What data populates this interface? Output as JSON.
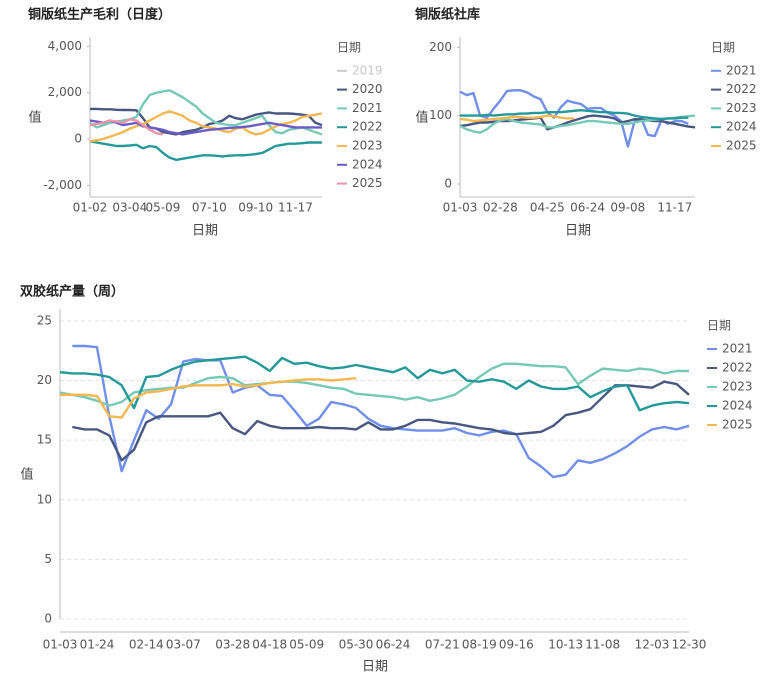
{
  "chart_data": [
    {
      "type": "line",
      "title": "铜版纸生产毛利（日度）",
      "x_label": "日期",
      "y_label": "值",
      "legend_title": "日期",
      "grid": false,
      "categories": [
        "01-02",
        null,
        null,
        null,
        null,
        null,
        "03-04",
        null,
        null,
        null,
        null,
        "05-09",
        null,
        null,
        null,
        null,
        null,
        null,
        "07-10",
        null,
        null,
        null,
        null,
        null,
        null,
        "09-10",
        null,
        null,
        null,
        null,
        null,
        "11-17",
        null,
        null,
        null,
        null
      ],
      "ylim": [
        -2500,
        4400
      ],
      "yticks": [
        {
          "value": -2000,
          "label": "-2,000"
        },
        0,
        {
          "value": 2000,
          "label": "2,000"
        },
        {
          "value": 4000,
          "label": "4,000"
        }
      ],
      "series": [
        {
          "name": "2019",
          "color": "#c8c8c8",
          "visible": false,
          "values": [
            null,
            null,
            null,
            null,
            null,
            null,
            null,
            null,
            null,
            null,
            null,
            null,
            null,
            null,
            null,
            null,
            null,
            null,
            null,
            null,
            null,
            null,
            null,
            null,
            null,
            null,
            null,
            null,
            null,
            null,
            null,
            null,
            null,
            null,
            null,
            null
          ]
        },
        {
          "name": "2020",
          "color": "#475781",
          "values": [
            1300,
            1300,
            1280,
            1280,
            1260,
            1250,
            1250,
            1240,
            900,
            500,
            450,
            300,
            250,
            200,
            300,
            350,
            400,
            500,
            650,
            700,
            800,
            1000,
            900,
            850,
            950,
            1050,
            1100,
            1150,
            1100,
            1100,
            1100,
            1080,
            1050,
            1000,
            700,
            600
          ]
        },
        {
          "name": "2021",
          "color": "#76c9b6",
          "values": [
            700,
            500,
            600,
            700,
            750,
            800,
            850,
            950,
            1500,
            1900,
            2000,
            2050,
            2100,
            1950,
            1800,
            1600,
            1400,
            1100,
            900,
            700,
            650,
            600,
            600,
            700,
            800,
            900,
            1000,
            600,
            300,
            250,
            400,
            450,
            500,
            400,
            300,
            200
          ]
        },
        {
          "name": "2022",
          "color": "#24999a",
          "values": [
            -100,
            -150,
            -200,
            -250,
            -300,
            -300,
            -280,
            -250,
            -400,
            -300,
            -350,
            -600,
            -800,
            -900,
            -850,
            -800,
            -750,
            -700,
            -700,
            -720,
            -750,
            -720,
            -700,
            -700,
            -680,
            -650,
            -600,
            -450,
            -300,
            -250,
            -200,
            -200,
            -180,
            -150,
            -150,
            -150
          ]
        },
        {
          "name": "2023",
          "color": "#f5b850",
          "values": [
            -100,
            -50,
            0,
            100,
            200,
            300,
            450,
            550,
            650,
            800,
            950,
            1100,
            1200,
            1100,
            1000,
            800,
            700,
            550,
            500,
            450,
            350,
            300,
            450,
            500,
            300,
            200,
            250,
            400,
            550,
            650,
            700,
            800,
            950,
            1000,
            1050,
            1100
          ]
        },
        {
          "name": "2024",
          "color": "#6a5bc6",
          "values": [
            800,
            750,
            700,
            800,
            700,
            600,
            650,
            700,
            550,
            500,
            450,
            400,
            300,
            250,
            200,
            250,
            300,
            350,
            400,
            420,
            450,
            480,
            500,
            520,
            550,
            600,
            650,
            700,
            650,
            600,
            550,
            500,
            500,
            500,
            500,
            500
          ]
        },
        {
          "name": "2025",
          "color": "#ec93ab",
          "values": [
            600,
            650,
            700,
            800,
            750,
            700,
            850,
            800,
            600,
            400,
            250,
            200,
            null,
            null,
            null,
            null,
            null,
            null,
            null,
            null,
            null,
            null,
            null,
            null,
            null,
            null,
            null,
            null,
            null,
            null,
            null,
            null,
            null,
            null,
            null,
            null
          ]
        }
      ]
    },
    {
      "type": "line",
      "title": "铜版纸社库",
      "x_label": "日期",
      "y_label": "值",
      "legend_title": "日期",
      "grid": false,
      "categories": [
        "01-03",
        null,
        null,
        null,
        null,
        null,
        "02-28",
        null,
        null,
        null,
        null,
        null,
        null,
        "04-25",
        null,
        null,
        null,
        null,
        null,
        "06-24",
        null,
        null,
        null,
        null,
        null,
        "09-08",
        null,
        null,
        null,
        null,
        null,
        null,
        "11-17",
        null,
        null,
        null
      ],
      "ylim": [
        -19,
        215
      ],
      "yticks": [
        0,
        100,
        200
      ],
      "series": [
        {
          "name": "2021",
          "color": "#6f8fe8",
          "values": [
            135,
            130,
            133,
            100,
            97,
            110,
            122,
            136,
            137,
            137,
            134,
            128,
            124,
            105,
            97,
            112,
            122,
            119,
            117,
            110,
            111,
            111,
            104,
            100,
            92,
            55,
            92,
            96,
            72,
            70,
            93,
            88,
            92,
            92,
            88,
            null
          ]
        },
        {
          "name": "2022",
          "color": "#475781",
          "values": [
            85,
            86,
            88,
            90,
            90,
            91,
            92,
            92,
            93,
            94,
            95,
            96,
            97,
            80,
            83,
            86,
            90,
            93,
            96,
            99,
            100,
            99,
            98,
            96,
            90,
            92,
            95,
            94,
            93,
            92,
            92,
            90,
            88,
            86,
            84,
            83
          ]
        },
        {
          "name": "2023",
          "color": "#76c9b6",
          "values": [
            85,
            80,
            77,
            75,
            80,
            88,
            93,
            95,
            92,
            90,
            89,
            88,
            87,
            83,
            83,
            85,
            86,
            88,
            90,
            92,
            92,
            91,
            90,
            89,
            88,
            88,
            90,
            92,
            93,
            94,
            95,
            96,
            97,
            98,
            99,
            100
          ]
        },
        {
          "name": "2024",
          "color": "#24999a",
          "values": [
            100,
            100,
            100,
            100,
            101,
            100,
            101,
            102,
            102,
            103,
            103,
            104,
            104,
            105,
            105,
            105,
            106,
            107,
            108,
            107,
            106,
            105,
            105,
            104,
            104,
            103,
            100,
            98,
            97,
            96,
            95,
            96,
            96,
            97,
            97,
            null
          ]
        },
        {
          "name": "2025",
          "color": "#f5b850",
          "values": [
            95,
            94,
            92,
            93,
            94,
            95,
            96,
            97,
            98,
            98,
            97,
            97,
            98,
            100,
            99,
            97,
            96,
            96,
            null,
            null,
            null,
            null,
            null,
            null,
            null,
            null,
            null,
            null,
            null,
            null,
            null,
            null,
            null,
            null,
            null,
            null
          ]
        }
      ]
    },
    {
      "type": "line",
      "title": "双胶纸产量（周）",
      "x_label": "日期",
      "y_label": "值",
      "legend_title": "日期",
      "grid": true,
      "categories": [
        "01-03",
        null,
        null,
        "01-24",
        null,
        null,
        null,
        "02-14",
        null,
        null,
        "03-07",
        null,
        null,
        null,
        "03-28",
        null,
        null,
        "04-18",
        null,
        null,
        "05-09",
        null,
        null,
        null,
        "05-30",
        null,
        null,
        "06-24",
        null,
        null,
        null,
        "07-21",
        null,
        null,
        "08-19",
        null,
        null,
        "09-16",
        null,
        null,
        null,
        "10-13",
        null,
        null,
        "11-08",
        null,
        null,
        null,
        "12-03",
        null,
        null,
        "12-30"
      ],
      "ylim": [
        0,
        26
      ],
      "yticks": [
        0,
        5,
        10,
        15,
        20,
        25
      ],
      "series": [
        {
          "name": "2021",
          "color": "#6f8fe8",
          "values": [
            null,
            22.9,
            22.9,
            22.8,
            17,
            12.4,
            15,
            17.5,
            16.8,
            18,
            21.6,
            21.8,
            21.7,
            21.7,
            19,
            19.4,
            19.6,
            18.8,
            18.7,
            17.5,
            16.2,
            16.8,
            18.2,
            18,
            17.7,
            16.8,
            16.2,
            16,
            15.9,
            15.8,
            15.8,
            15.8,
            16,
            15.6,
            15.4,
            15.7,
            15.8,
            15.5,
            13.5,
            12.8,
            11.9,
            12.1,
            13.3,
            13.1,
            13.4,
            13.9,
            14.5,
            15.3,
            15.9,
            16.1,
            15.9,
            16.2
          ]
        },
        {
          "name": "2022",
          "color": "#475781",
          "values": [
            null,
            16.1,
            15.9,
            15.9,
            15.4,
            13.3,
            14.2,
            16.5,
            17,
            17,
            17,
            17,
            17,
            17.3,
            16,
            15.5,
            16.6,
            16.2,
            16,
            16,
            16,
            16.1,
            16,
            16,
            15.9,
            16.5,
            15.9,
            15.9,
            16.2,
            16.7,
            16.7,
            16.5,
            16.4,
            16.2,
            16,
            15.9,
            15.6,
            15.5,
            15.6,
            15.7,
            16.2,
            17.1,
            17.3,
            17.6,
            18.6,
            19.6,
            19.6,
            19.5,
            19.4,
            19.9,
            19.7,
            18.8
          ]
        },
        {
          "name": "2023",
          "color": "#76c9b6",
          "values": [
            19,
            18.8,
            18.6,
            18.3,
            17.9,
            18.2,
            19,
            19.2,
            19.3,
            19.4,
            19.4,
            19.8,
            20.2,
            20.3,
            20.2,
            19.6,
            19.7,
            19.8,
            19.9,
            19.9,
            19.8,
            19.6,
            19.4,
            19.3,
            18.9,
            18.8,
            18.7,
            18.6,
            18.4,
            18.6,
            18.3,
            18.5,
            18.8,
            19.5,
            20.3,
            21,
            21.4,
            21.4,
            21.3,
            21.2,
            21.2,
            21.1,
            19.7,
            20.4,
            21,
            20.9,
            20.8,
            21,
            20.9,
            20.6,
            20.8,
            20.8
          ]
        },
        {
          "name": "2024",
          "color": "#24999a",
          "values": [
            20.7,
            20.6,
            20.6,
            20.5,
            20.3,
            19.6,
            17.7,
            20.3,
            20.4,
            20.9,
            21.3,
            21.6,
            21.7,
            21.8,
            21.9,
            22,
            21.5,
            20.8,
            21.9,
            21.4,
            21.5,
            21.2,
            21,
            21.1,
            21.3,
            21.1,
            20.9,
            20.7,
            21.1,
            20.2,
            20.9,
            20.6,
            20.9,
            20,
            19.9,
            20.1,
            19.9,
            19.3,
            20,
            19.5,
            19.3,
            19.3,
            19.5,
            18.6,
            19.1,
            19.5,
            19.6,
            17.5,
            17.9,
            18.1,
            18.2,
            18.1
          ]
        },
        {
          "name": "2025",
          "color": "#f5b850",
          "values": [
            18.8,
            18.8,
            18.8,
            18.7,
            17,
            16.9,
            18.5,
            19,
            19.1,
            19.3,
            19.5,
            19.6,
            19.6,
            19.6,
            19.7,
            19.5,
            19.6,
            19.8,
            19.9,
            20,
            20.1,
            20.1,
            20,
            20.1,
            20.2,
            null,
            null,
            null,
            null,
            null,
            null,
            null,
            null,
            null,
            null,
            null,
            null,
            null,
            null,
            null,
            null,
            null,
            null,
            null,
            null,
            null,
            null,
            null,
            null,
            null,
            null,
            null
          ]
        }
      ]
    }
  ]
}
